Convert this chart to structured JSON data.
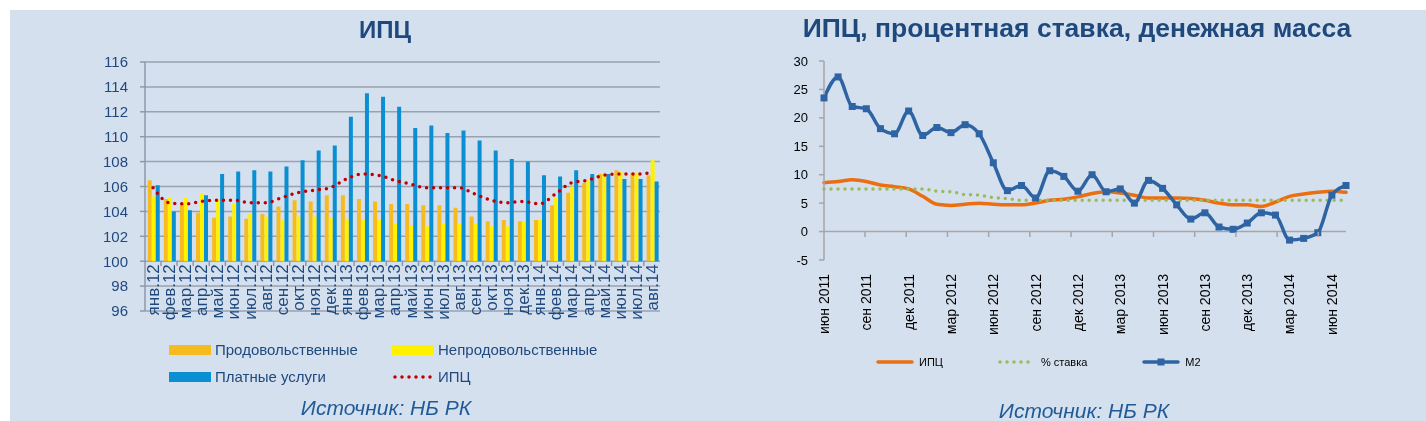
{
  "chart_data": [
    {
      "type": "bar",
      "title": "ИПЦ",
      "categories": [
        "янв.12",
        "фев.12",
        "мар.12",
        "апр.12",
        "май.12",
        "июн.12",
        "июл.12",
        "авг.12",
        "сен.12",
        "окт.12",
        "ноя.12",
        "дек.12",
        "янв.13",
        "фев.13",
        "мар.13",
        "апр.13",
        "май.13",
        "июн.13",
        "июл.13",
        "авг.13",
        "сен.13",
        "окт.13",
        "ноя.13",
        "дек.13",
        "янв.14",
        "фев.14",
        "мар.14",
        "апр.14",
        "май.14",
        "июн.14",
        "июл.14",
        "авг.14"
      ],
      "series": [
        {
          "name": "Продовольственные",
          "color": "#f6bb1f",
          "base": [
            100,
            100,
            100,
            100,
            100,
            100,
            100,
            100,
            100,
            100,
            100,
            100,
            100,
            100,
            100,
            100,
            100,
            100,
            100,
            100,
            100,
            100,
            100,
            100,
            100,
            100,
            100,
            100,
            100,
            100,
            100,
            100
          ],
          "values": [
            6.5,
            5.0,
            4.6,
            3.9,
            3.5,
            3.6,
            3.4,
            3.8,
            4.4,
            4.9,
            4.8,
            5.3,
            5.3,
            5.0,
            4.8,
            4.6,
            4.6,
            4.5,
            4.5,
            4.3,
            3.6,
            3.2,
            3.3,
            3.2,
            3.3,
            4.5,
            5.5,
            6.3,
            7.0,
            7.3,
            7.1,
            6.9
          ]
        },
        {
          "name": "Непродовольственные",
          "color": "#fff200",
          "base": [
            100,
            100,
            100,
            100,
            100,
            100,
            100,
            100,
            100,
            100,
            100,
            100,
            100,
            100,
            100,
            100,
            100,
            100,
            100,
            100,
            100,
            100,
            100,
            100,
            100,
            100,
            100,
            100,
            100,
            100,
            100,
            100
          ],
          "values": [
            5.2,
            5.1,
            5.1,
            5.4,
            5.0,
            4.6,
            3.8,
            3.6,
            3.3,
            3.6,
            3.6,
            3.5,
            3.4,
            3.3,
            3.3,
            3.0,
            2.9,
            2.8,
            3.0,
            3.0,
            3.0,
            2.8,
            2.8,
            3.2,
            3.3,
            5.1,
            6.0,
            6.5,
            7.0,
            7.2,
            7.1,
            8.1
          ]
        },
        {
          "name": "Платные услуги",
          "color": "#0a8fd2",
          "base": [
            100,
            100,
            100,
            100,
            100,
            100,
            100,
            100,
            100,
            100,
            100,
            100,
            100,
            100,
            100,
            100,
            100,
            100,
            100,
            100,
            100,
            100,
            100,
            100,
            100,
            100,
            100,
            100,
            100,
            100,
            100,
            100
          ],
          "values": [
            6.1,
            4.0,
            4.1,
            5.3,
            7.0,
            7.2,
            7.3,
            7.2,
            7.6,
            8.1,
            8.9,
            9.3,
            11.6,
            13.5,
            13.2,
            12.4,
            10.7,
            10.9,
            10.3,
            10.5,
            9.7,
            8.9,
            8.2,
            8.0,
            6.9,
            6.8,
            7.3,
            7.0,
            7.0,
            6.6,
            6.6,
            6.4
          ]
        },
        {
          "name": "ИПЦ",
          "type": "line",
          "color": "#c00000",
          "line_style": "dotted",
          "marker": "none",
          "values": [
            105.9,
            104.7,
            104.6,
            104.8,
            104.9,
            104.9,
            104.7,
            104.7,
            105.1,
            105.5,
            105.7,
            105.9,
            106.6,
            107.0,
            106.9,
            106.5,
            106.2,
            105.9,
            105.9,
            105.9,
            105.4,
            104.9,
            104.7,
            104.8,
            104.6,
            105.4,
            106.3,
            106.5,
            106.9,
            107.0,
            107.0,
            107.1
          ]
        }
      ],
      "ylim": [
        96,
        116
      ],
      "yticks": [
        96,
        98,
        100,
        102,
        104,
        106,
        108,
        110,
        112,
        114,
        116
      ],
      "grid": "y",
      "legend": "bottom",
      "annotations": [
        "Источник: НБ РК"
      ]
    },
    {
      "type": "line",
      "title": "ИПЦ, процентная ставка, денежная масса",
      "categories": [
        "июн 2011",
        null,
        null,
        "сен 2011",
        null,
        null,
        "дек 2011",
        null,
        null,
        "мар 2012",
        null,
        null,
        "июн 2012",
        null,
        null,
        "сен 2012",
        null,
        null,
        "дек 2012",
        null,
        null,
        "мар 2013",
        null,
        null,
        "июн 2013",
        null,
        null,
        "сен 2013",
        null,
        null,
        "дек 2013",
        null,
        null,
        "мар 2014",
        null,
        null,
        "июн 2014",
        null
      ],
      "series": [
        {
          "name": "ИПЦ",
          "color": "#eb6e0f",
          "line_style": "solid",
          "marker": "none",
          "values": [
            8.6,
            8.8,
            9.1,
            8.8,
            8.2,
            7.9,
            7.5,
            6.2,
            4.8,
            4.6,
            4.8,
            5.0,
            4.8,
            4.7,
            4.7,
            5.0,
            5.5,
            5.7,
            6.1,
            6.7,
            7.0,
            6.8,
            6.4,
            5.9,
            5.9,
            5.9,
            5.8,
            5.5,
            5.0,
            4.7,
            4.7,
            4.4,
            5.2,
            6.2,
            6.6,
            6.9,
            7.1,
            6.9
          ]
        },
        {
          "name": "% ставка",
          "color": "#9bbb59",
          "line_style": "dotted",
          "marker": "none",
          "values": [
            7.5,
            7.5,
            7.5,
            7.5,
            7.5,
            7.5,
            7.5,
            7.5,
            7.1,
            7.0,
            6.5,
            6.4,
            6.0,
            5.8,
            5.5,
            5.5,
            5.5,
            5.5,
            5.5,
            5.5,
            5.5,
            5.5,
            5.5,
            5.5,
            5.5,
            5.5,
            5.5,
            5.5,
            5.5,
            5.5,
            5.5,
            5.5,
            5.5,
            5.5,
            5.5,
            5.5,
            5.5,
            5.5
          ]
        },
        {
          "name": "М2",
          "color": "#2e64a3",
          "line_style": "solid",
          "marker": "square",
          "values": [
            23.5,
            27.2,
            22.0,
            21.6,
            18.1,
            17.2,
            21.2,
            16.9,
            18.3,
            17.4,
            18.8,
            17.2,
            12.1,
            7.2,
            8.1,
            5.9,
            10.7,
            9.7,
            7.1,
            10.0,
            7.0,
            7.5,
            5.0,
            9.0,
            7.6,
            4.7,
            2.2,
            3.3,
            0.8,
            0.4,
            1.5,
            3.3,
            2.9,
            -1.5,
            -1.2,
            -0.2,
            6.4,
            8.1
          ]
        }
      ],
      "ylim": [
        -5,
        30
      ],
      "yticks": [
        -5,
        0,
        5,
        10,
        15,
        20,
        25,
        30
      ],
      "legend": "bottom",
      "ref_lines": [
        {
          "axis": "y",
          "value": 0,
          "color": "#a6a6a6"
        }
      ],
      "annotations": [
        "Источник: НБ РК"
      ]
    }
  ]
}
